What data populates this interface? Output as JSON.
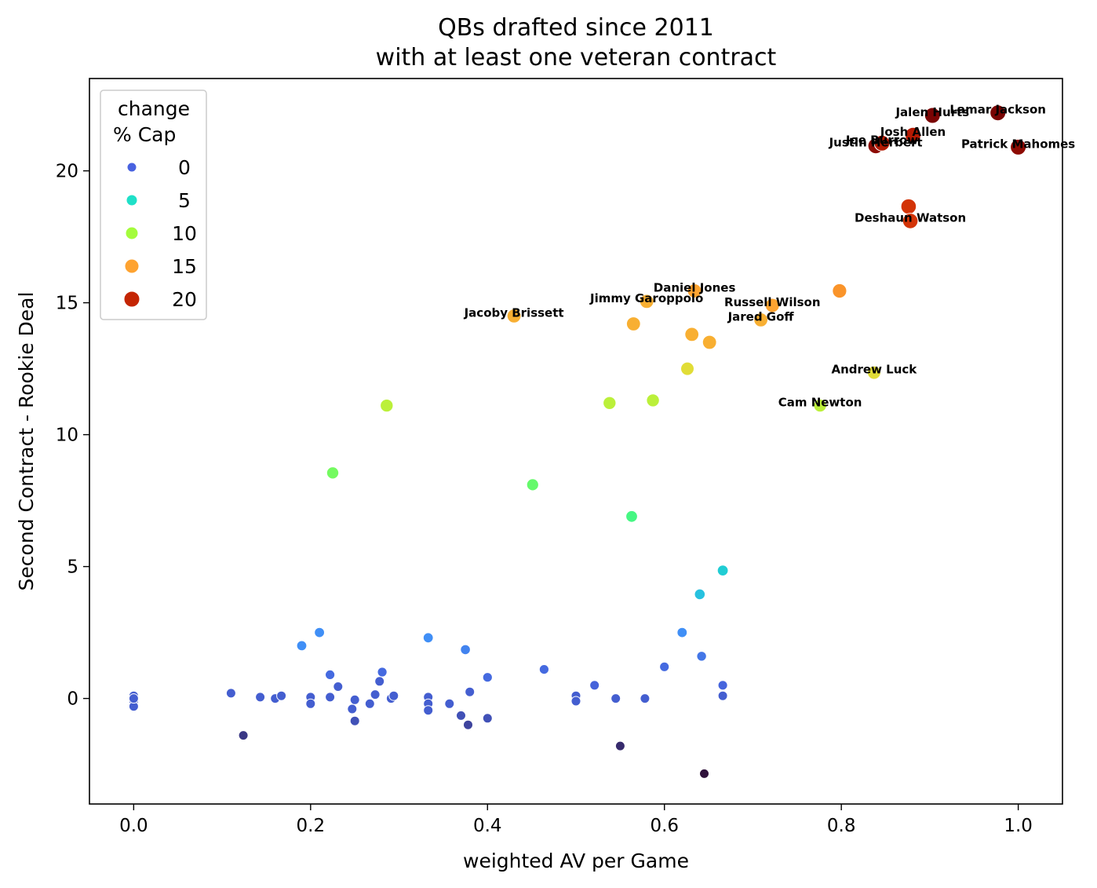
{
  "chart_data": {
    "type": "scatter",
    "title": "QBs drafted since 2011",
    "subtitle": "with at least one veteran contract",
    "xlabel": "weighted AV per Game",
    "ylabel": "Second Contract - Rookie Deal",
    "xlim": [
      -0.05,
      1.05
    ],
    "ylim": [
      -4.0,
      23.5
    ],
    "xticks": [
      0.0,
      0.2,
      0.4,
      0.6,
      0.8,
      1.0
    ],
    "xtick_labels": [
      "0.0",
      "0.2",
      "0.4",
      "0.6",
      "0.8",
      "1.0"
    ],
    "yticks": [
      0,
      5,
      10,
      15,
      20
    ],
    "ytick_labels": [
      "0",
      "5",
      "10",
      "15",
      "20"
    ],
    "grid": false,
    "legend": {
      "placement": "top-left",
      "title_line1": "change",
      "title_line2": "% Cap",
      "entries": [
        {
          "label": "0",
          "value": 0,
          "color": "#4862e0"
        },
        {
          "label": "5",
          "value": 5,
          "color": "#1fe0c8"
        },
        {
          "label": "10",
          "value": 10,
          "color": "#a4fc3c"
        },
        {
          "label": "15",
          "value": 15,
          "color": "#fea331"
        },
        {
          "label": "20",
          "value": 20,
          "color": "#c42503"
        }
      ]
    },
    "points": [
      {
        "x": 0.0,
        "y": 0.1,
        "c": 0
      },
      {
        "x": 0.0,
        "y": -0.1,
        "c": 0
      },
      {
        "x": 0.0,
        "y": -0.3,
        "c": 0
      },
      {
        "x": 0.0,
        "y": 0.0,
        "c": 0
      },
      {
        "x": 0.11,
        "y": 0.2,
        "c": 0
      },
      {
        "x": 0.124,
        "y": -1.4,
        "c": -1.5
      },
      {
        "x": 0.143,
        "y": 0.05,
        "c": 0
      },
      {
        "x": 0.16,
        "y": 0.0,
        "c": 0
      },
      {
        "x": 0.167,
        "y": 0.1,
        "c": 0
      },
      {
        "x": 0.19,
        "y": 2.0,
        "c": 2
      },
      {
        "x": 0.2,
        "y": 0.05,
        "c": 0
      },
      {
        "x": 0.2,
        "y": -0.2,
        "c": 0
      },
      {
        "x": 0.21,
        "y": 2.5,
        "c": 2
      },
      {
        "x": 0.222,
        "y": 0.9,
        "c": 0.5
      },
      {
        "x": 0.222,
        "y": 0.05,
        "c": 0
      },
      {
        "x": 0.225,
        "y": 8.55,
        "c": 8.5
      },
      {
        "x": 0.231,
        "y": 0.45,
        "c": 0
      },
      {
        "x": 0.247,
        "y": -0.4,
        "c": 0
      },
      {
        "x": 0.25,
        "y": -0.85,
        "c": -0.5
      },
      {
        "x": 0.25,
        "y": -0.05,
        "c": 0
      },
      {
        "x": 0.267,
        "y": -0.2,
        "c": 0
      },
      {
        "x": 0.273,
        "y": 0.15,
        "c": 0
      },
      {
        "x": 0.278,
        "y": 0.65,
        "c": 0
      },
      {
        "x": 0.281,
        "y": 1.0,
        "c": 0.5
      },
      {
        "x": 0.286,
        "y": 11.1,
        "c": 11
      },
      {
        "x": 0.291,
        "y": 0.0,
        "c": 0
      },
      {
        "x": 0.294,
        "y": 0.1,
        "c": 0
      },
      {
        "x": 0.333,
        "y": 0.05,
        "c": 0
      },
      {
        "x": 0.333,
        "y": -0.2,
        "c": 0
      },
      {
        "x": 0.333,
        "y": -0.45,
        "c": 0
      },
      {
        "x": 0.333,
        "y": 2.3,
        "c": 2
      },
      {
        "x": 0.357,
        "y": -0.2,
        "c": 0
      },
      {
        "x": 0.37,
        "y": -0.65,
        "c": -0.5
      },
      {
        "x": 0.375,
        "y": 1.85,
        "c": 1.5
      },
      {
        "x": 0.378,
        "y": -1.0,
        "c": -1
      },
      {
        "x": 0.38,
        "y": 0.25,
        "c": 0
      },
      {
        "x": 0.4,
        "y": 0.8,
        "c": 0.5
      },
      {
        "x": 0.4,
        "y": -0.75,
        "c": -0.5
      },
      {
        "x": 0.43,
        "y": 14.5,
        "c": 14.5,
        "label": "Jacoby Brissett"
      },
      {
        "x": 0.451,
        "y": 8.1,
        "c": 8
      },
      {
        "x": 0.464,
        "y": 1.1,
        "c": 0.5
      },
      {
        "x": 0.5,
        "y": 0.1,
        "c": 0
      },
      {
        "x": 0.5,
        "y": -0.1,
        "c": 0
      },
      {
        "x": 0.521,
        "y": 0.5,
        "c": 0.2
      },
      {
        "x": 0.538,
        "y": 11.2,
        "c": 11
      },
      {
        "x": 0.545,
        "y": 0.0,
        "c": 0
      },
      {
        "x": 0.55,
        "y": -1.8,
        "c": -2
      },
      {
        "x": 0.563,
        "y": 6.9,
        "c": 7
      },
      {
        "x": 0.565,
        "y": 14.2,
        "c": 14.5
      },
      {
        "x": 0.578,
        "y": 0.0,
        "c": 0
      },
      {
        "x": 0.58,
        "y": 15.05,
        "c": 14.5,
        "label": "Jimmy Garoppolo"
      },
      {
        "x": 0.587,
        "y": 11.3,
        "c": 11
      },
      {
        "x": 0.6,
        "y": 1.2,
        "c": 0.5
      },
      {
        "x": 0.62,
        "y": 2.5,
        "c": 2
      },
      {
        "x": 0.626,
        "y": 12.5,
        "c": 12.5
      },
      {
        "x": 0.631,
        "y": 13.8,
        "c": 14.5
      },
      {
        "x": 0.634,
        "y": 15.45,
        "c": 15,
        "label": "Daniel Jones"
      },
      {
        "x": 0.64,
        "y": 3.95,
        "c": 4
      },
      {
        "x": 0.642,
        "y": 1.6,
        "c": 1
      },
      {
        "x": 0.645,
        "y": -2.85,
        "c": -3
      },
      {
        "x": 0.651,
        "y": 13.5,
        "c": 14.5
      },
      {
        "x": 0.666,
        "y": 4.85,
        "c": 4.5
      },
      {
        "x": 0.666,
        "y": 0.5,
        "c": 0.3
      },
      {
        "x": 0.666,
        "y": 0.1,
        "c": 0
      },
      {
        "x": 0.709,
        "y": 14.35,
        "c": 14.5,
        "label": "Jared Goff"
      },
      {
        "x": 0.722,
        "y": 14.9,
        "c": 15,
        "label": "Russell Wilson"
      },
      {
        "x": 0.776,
        "y": 11.1,
        "c": 11,
        "label": "Cam Newton"
      },
      {
        "x": 0.798,
        "y": 15.45,
        "c": 15.5
      },
      {
        "x": 0.837,
        "y": 12.35,
        "c": 12.5,
        "label": "Andrew Luck"
      },
      {
        "x": 0.839,
        "y": 20.95,
        "c": 21.5,
        "label": "Justin Herbert"
      },
      {
        "x": 0.846,
        "y": 21.05,
        "c": 20.5,
        "label": "Joe Burrow"
      },
      {
        "x": 0.876,
        "y": 18.65,
        "c": 19
      },
      {
        "x": 0.878,
        "y": 18.1,
        "c": 19,
        "label": "Deshaun Watson"
      },
      {
        "x": 0.881,
        "y": 21.35,
        "c": 20.5,
        "label": "Josh Allen"
      },
      {
        "x": 0.903,
        "y": 22.1,
        "c": 22,
        "label": "Jalen Hurts"
      },
      {
        "x": 0.977,
        "y": 22.2,
        "c": 22,
        "label": "Lamar Jackson"
      },
      {
        "x": 1.0,
        "y": 20.9,
        "c": 21.5,
        "label": "Patrick Mahomes"
      }
    ]
  }
}
